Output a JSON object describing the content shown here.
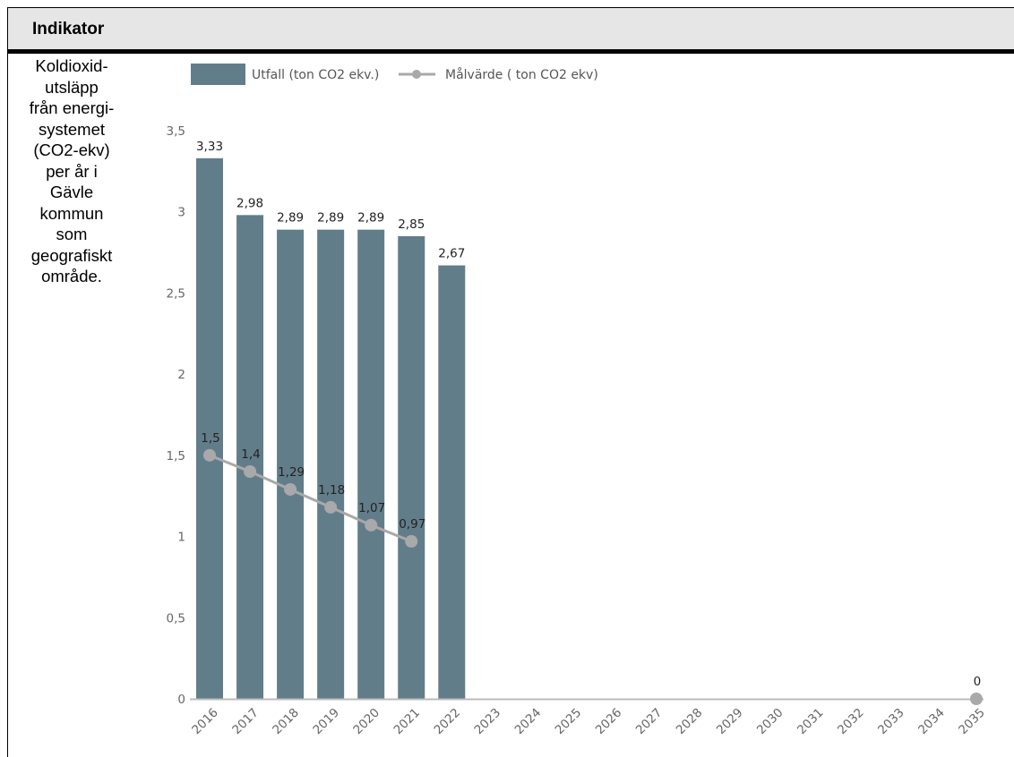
{
  "header": {
    "title": "Indikator"
  },
  "indicator": {
    "lines": [
      "Koldioxid-",
      "utsläpp",
      "från energi-",
      "systemet",
      "(CO2-ekv)",
      "per år i",
      "Gävle",
      "kommun",
      "som",
      "geografiskt",
      "område."
    ]
  },
  "colors": {
    "bar": "#627d8a",
    "line": "#a9a9a9",
    "axis": "#bbbbbb"
  },
  "chart_data": {
    "type": "bar",
    "categories": [
      "2016",
      "2017",
      "2018",
      "2019",
      "2020",
      "2021",
      "2022",
      "2023",
      "2024",
      "2025",
      "2026",
      "2027",
      "2028",
      "2029",
      "2030",
      "2031",
      "2032",
      "2033",
      "2034",
      "2035"
    ],
    "series": [
      {
        "name": "Utfall (ton CO2 ekv.)",
        "kind": "bar",
        "values": [
          3.33,
          2.98,
          2.89,
          2.89,
          2.89,
          2.85,
          2.67,
          null,
          null,
          null,
          null,
          null,
          null,
          null,
          null,
          null,
          null,
          null,
          null,
          null
        ],
        "labels": [
          "3,33",
          "2,98",
          "2,89",
          "2,89",
          "2,89",
          "2,85",
          "2,67",
          "",
          "",
          "",
          "",
          "",
          "",
          "",
          "",
          "",
          "",
          "",
          "",
          ""
        ]
      },
      {
        "name": "Målvärde ( ton CO2 ekv)",
        "kind": "line",
        "values": [
          1.5,
          1.4,
          1.29,
          1.18,
          1.07,
          0.97,
          null,
          null,
          null,
          null,
          null,
          null,
          null,
          null,
          null,
          null,
          null,
          null,
          null,
          0
        ],
        "labels": [
          "1,5",
          "1,4",
          "1,29",
          "1,18",
          "1,07",
          "0,97",
          "",
          "",
          "",
          "",
          "",
          "",
          "",
          "",
          "",
          "",
          "",
          "",
          "",
          "0"
        ]
      }
    ],
    "yticks": [
      "0",
      "0,5",
      "1",
      "1,5",
      "2",
      "2,5",
      "3",
      "3,5"
    ],
    "ytick_values": [
      0,
      0.5,
      1,
      1.5,
      2,
      2.5,
      3,
      3.5
    ],
    "ylim": [
      0,
      3.5
    ],
    "grid": false,
    "legend": "top-left"
  }
}
